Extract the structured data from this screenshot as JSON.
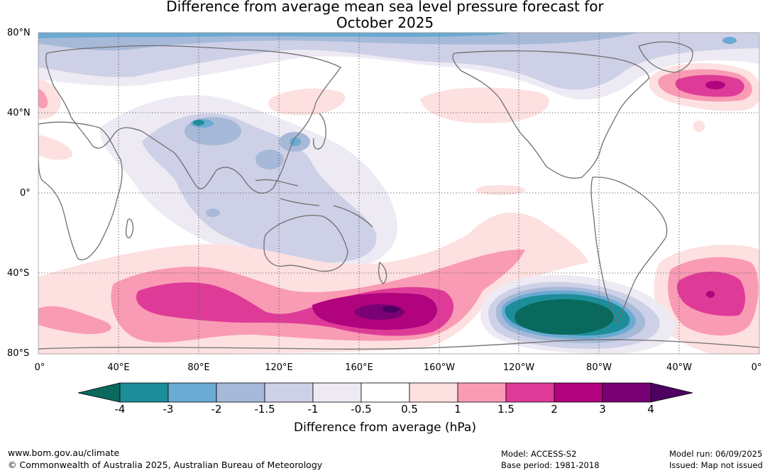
{
  "title": {
    "line1": "Difference from average mean sea level pressure forecast for",
    "line2": "October 2025"
  },
  "latitude_labels": [
    "80°N",
    "40°N",
    "0°",
    "40°S",
    "80°S"
  ],
  "longitude_labels": [
    "0°",
    "40°E",
    "80°E",
    "120°E",
    "160°E",
    "160°W",
    "120°W",
    "80°W",
    "40°W",
    "0°"
  ],
  "legend": {
    "ticks": [
      "-4",
      "-3",
      "-2",
      "-1.5",
      "-1",
      "-0.5",
      "0.5",
      "1",
      "1.5",
      "2",
      "3",
      "4"
    ],
    "colors": [
      "#08695c",
      "#1c8e99",
      "#6aaad3",
      "#a6b9d8",
      "#cdd0e6",
      "#eeeaf4",
      "#ffffff",
      "#fde0e0",
      "#f99bb4",
      "#de3b98",
      "#b0037d",
      "#7a0175",
      "#4d0062"
    ],
    "label": "Difference from average (hPa)"
  },
  "footer": {
    "site": "www.bom.gov.au/climate",
    "copyright": "© Commonwealth of Australia 2025, Australian Bureau of Meteorology",
    "model": "Model: ACCESS-S2",
    "base_period": "Base period: 1981-2018",
    "model_run": "Model run: 06/09/2025",
    "issued": "Issued: Map not issued"
  }
}
